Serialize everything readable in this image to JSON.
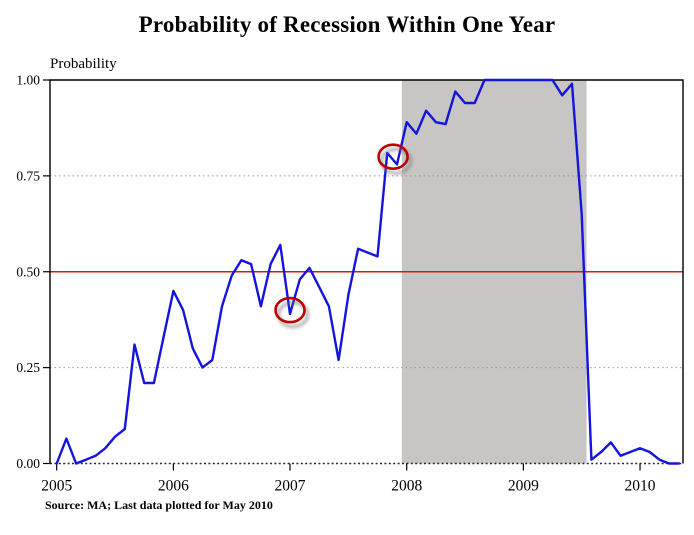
{
  "header": {
    "title": "Probability of Recession Within One Year"
  },
  "footer": {
    "source": "Source: MA; Last data plotted for May 2010"
  },
  "chart_data": {
    "type": "line",
    "title": "Probability of Recession Within One Year",
    "xlabel": "",
    "ylabel": "Probability",
    "ylim": [
      0,
      1
    ],
    "frequency": "monthly",
    "x_start": "2005-01",
    "x_end": "2010-05",
    "x_tick_labels": [
      "2005",
      "2006",
      "2007",
      "2008",
      "2009",
      "2010"
    ],
    "x_tick_month_indices": [
      0,
      12,
      24,
      36,
      48,
      60
    ],
    "y_ticks": [
      {
        "value": 0.0,
        "label": "0.00"
      },
      {
        "value": 0.25,
        "label": "0.25"
      },
      {
        "value": 0.5,
        "label": "0.50"
      },
      {
        "value": 0.75,
        "label": "0.75"
      },
      {
        "value": 1.0,
        "label": "1.00"
      }
    ],
    "dotted_gridlines": [
      0.25,
      0.75
    ],
    "zero_line_dotted": true,
    "ref_line": {
      "value": 0.5,
      "color": "#cc2200"
    },
    "recession_band": {
      "start_month_index": 35.5,
      "end_month_index": 54.5,
      "color": "#c8c5c5"
    },
    "series": [
      {
        "name": "Probability of recession within one year",
        "color": "#1414dd",
        "values": [
          0.0,
          0.065,
          0.0,
          0.01,
          0.02,
          0.04,
          0.07,
          0.09,
          0.31,
          0.21,
          0.21,
          0.33,
          0.45,
          0.4,
          0.3,
          0.25,
          0.27,
          0.41,
          0.49,
          0.53,
          0.52,
          0.41,
          0.52,
          0.57,
          0.39,
          0.48,
          0.51,
          0.46,
          0.41,
          0.27,
          0.44,
          0.56,
          0.55,
          0.54,
          0.81,
          0.78,
          0.89,
          0.86,
          0.92,
          0.89,
          0.885,
          0.97,
          0.94,
          0.94,
          1.0,
          1.0,
          1.0,
          1.0,
          1.0,
          1.0,
          1.0,
          1.0,
          0.96,
          0.99,
          0.65,
          0.01,
          0.03,
          0.055,
          0.02,
          0.03,
          0.04,
          0.03,
          0.01,
          0.0,
          0.0
        ]
      }
    ],
    "annotations": [
      {
        "type": "circle",
        "month_index": 24.0,
        "value": 0.4,
        "color": "#bb0000"
      },
      {
        "type": "circle",
        "month_index": 34.6,
        "value": 0.8,
        "color": "#bb0000"
      }
    ]
  }
}
